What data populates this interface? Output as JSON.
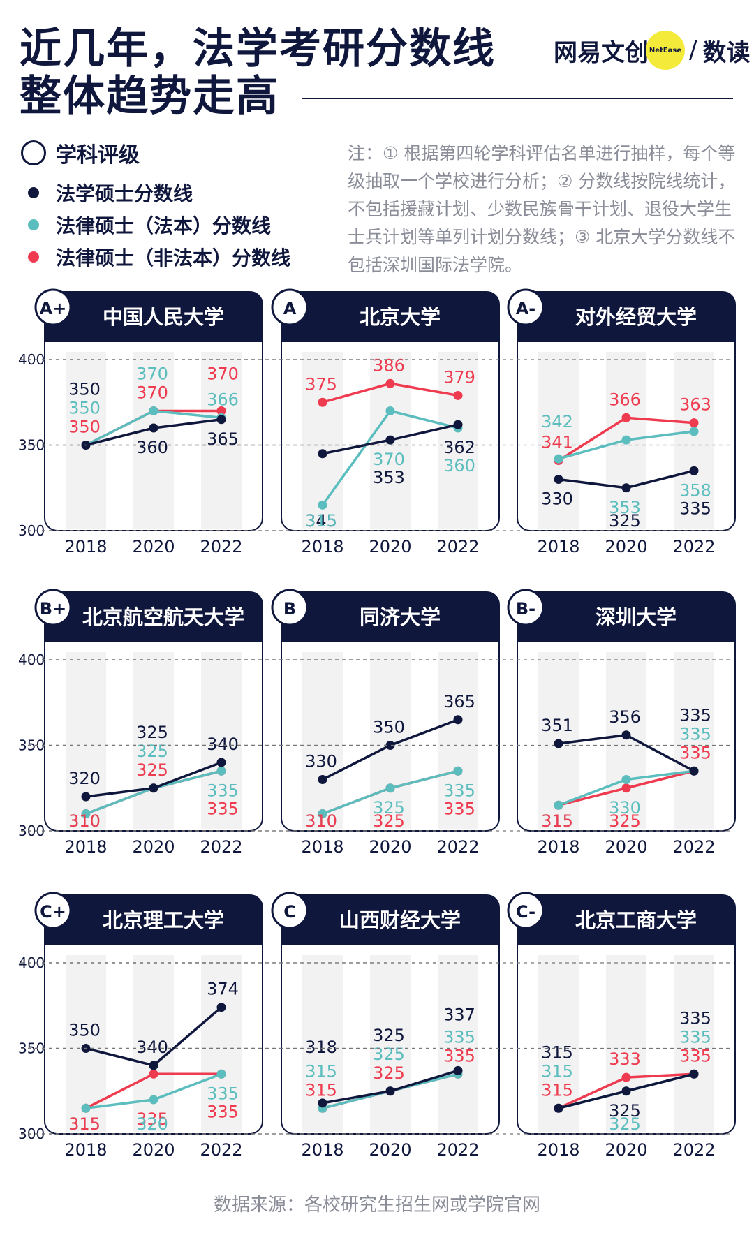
{
  "header": {
    "title_line1": "近几年，法学考研分数线",
    "title_line2": "整体趋势走高",
    "brand_left": "网易文创",
    "brand_circle": "NetEase",
    "brand_slash": "/",
    "brand_right": "数读"
  },
  "legend": {
    "heading": "学科评级",
    "items": [
      {
        "label": "法学硕士分数线",
        "color": "#10173d"
      },
      {
        "label": "法律硕士（法本）分数线",
        "color": "#5bbdbd"
      },
      {
        "label": "法律硕士（非法本）分数线",
        "color": "#ee3b4f"
      }
    ]
  },
  "note": "注：① 根据第四轮学科评估名单进行抽样，每个等级抽取一个学校进行分析；② 分数线按院线统计，不包括援藏计划、少数民族骨干计划、退役大学生士兵计划等单列计划分数线；③ 北京大学分数线不包括深圳国际法学院。",
  "source": "数据来源：各校研究生招生网或学院官网",
  "colors": {
    "navy": "#10173d",
    "teal": "#5bbdbd",
    "red": "#ee3b4f"
  },
  "chart_data": [
    {
      "type": "line",
      "grade": "A+",
      "title": "中国人民大学",
      "x": [
        "2018",
        "2020",
        "2022"
      ],
      "ylim": [
        300,
        400
      ],
      "yticks": [
        300,
        350,
        400
      ],
      "series": [
        {
          "name": "法学硕士分数线",
          "values": [
            350,
            360,
            365
          ]
        },
        {
          "name": "法律硕士（法本）分数线",
          "values": [
            350,
            370,
            366
          ]
        },
        {
          "name": "法律硕士（非法本）分数线",
          "values": [
            350,
            370,
            370
          ]
        }
      ]
    },
    {
      "type": "line",
      "grade": "A",
      "title": "北京大学",
      "x": [
        "2018",
        "2020",
        "2022"
      ],
      "ylim": [
        300,
        400
      ],
      "yticks": [
        300,
        350,
        400
      ],
      "series": [
        {
          "name": "法学硕士分数线",
          "values": [
            345,
            353,
            362
          ]
        },
        {
          "name": "法律硕士（法本）分数线",
          "values": [
            315,
            370,
            360
          ]
        },
        {
          "name": "法律硕士（非法本）分数线",
          "values": [
            375,
            386,
            379
          ]
        }
      ]
    },
    {
      "type": "line",
      "grade": "A-",
      "title": "对外经贸大学",
      "x": [
        "2018",
        "2020",
        "2022"
      ],
      "ylim": [
        300,
        400
      ],
      "yticks": [
        300,
        350,
        400
      ],
      "series": [
        {
          "name": "法学硕士分数线",
          "values": [
            330,
            325,
            335
          ]
        },
        {
          "name": "法律硕士（法本）分数线",
          "values": [
            342,
            353,
            358
          ]
        },
        {
          "name": "法律硕士（非法本）分数线",
          "values": [
            341,
            366,
            363
          ]
        }
      ]
    },
    {
      "type": "line",
      "grade": "B+",
      "title": "北京航空航天大学",
      "x": [
        "2018",
        "2020",
        "2022"
      ],
      "ylim": [
        300,
        400
      ],
      "yticks": [
        300,
        350,
        400
      ],
      "series": [
        {
          "name": "法学硕士分数线",
          "values": [
            320,
            325,
            340
          ]
        },
        {
          "name": "法律硕士（法本）分数线",
          "values": [
            310,
            325,
            335
          ]
        },
        {
          "name": "法律硕士（非法本）分数线",
          "values": [
            310,
            325,
            335
          ]
        }
      ]
    },
    {
      "type": "line",
      "grade": "B",
      "title": "同济大学",
      "x": [
        "2018",
        "2020",
        "2022"
      ],
      "ylim": [
        300,
        400
      ],
      "yticks": [
        300,
        350,
        400
      ],
      "series": [
        {
          "name": "法学硕士分数线",
          "values": [
            330,
            350,
            365
          ]
        },
        {
          "name": "法律硕士（法本）分数线",
          "values": [
            310,
            325,
            335
          ]
        },
        {
          "name": "法律硕士（非法本）分数线",
          "values": [
            310,
            325,
            335
          ]
        }
      ]
    },
    {
      "type": "line",
      "grade": "B-",
      "title": "深圳大学",
      "x": [
        "2018",
        "2020",
        "2022"
      ],
      "ylim": [
        300,
        400
      ],
      "yticks": [
        300,
        350,
        400
      ],
      "series": [
        {
          "name": "法学硕士分数线",
          "values": [
            351,
            356,
            335
          ]
        },
        {
          "name": "法律硕士（法本）分数线",
          "values": [
            315,
            330,
            335
          ]
        },
        {
          "name": "法律硕士（非法本）分数线",
          "values": [
            315,
            325,
            335
          ]
        }
      ]
    },
    {
      "type": "line",
      "grade": "C+",
      "title": "北京理工大学",
      "x": [
        "2018",
        "2020",
        "2022"
      ],
      "ylim": [
        300,
        400
      ],
      "yticks": [
        300,
        350,
        400
      ],
      "series": [
        {
          "name": "法学硕士分数线",
          "values": [
            350,
            340,
            374
          ]
        },
        {
          "name": "法律硕士（法本）分数线",
          "values": [
            315,
            320,
            335
          ]
        },
        {
          "name": "法律硕士（非法本）分数线",
          "values": [
            315,
            335,
            335
          ]
        }
      ]
    },
    {
      "type": "line",
      "grade": "C",
      "title": "山西财经大学",
      "x": [
        "2018",
        "2020",
        "2022"
      ],
      "ylim": [
        300,
        400
      ],
      "yticks": [
        300,
        350,
        400
      ],
      "series": [
        {
          "name": "法学硕士分数线",
          "values": [
            318,
            325,
            337
          ]
        },
        {
          "name": "法律硕士（法本）分数线",
          "values": [
            315,
            325,
            335
          ]
        },
        {
          "name": "法律硕士（非法本）分数线",
          "values": [
            315,
            325,
            335
          ]
        }
      ]
    },
    {
      "type": "line",
      "grade": "C-",
      "title": "北京工商大学",
      "x": [
        "2018",
        "2020",
        "2022"
      ],
      "ylim": [
        300,
        400
      ],
      "yticks": [
        300,
        350,
        400
      ],
      "series": [
        {
          "name": "法学硕士分数线",
          "values": [
            315,
            325,
            335
          ]
        },
        {
          "name": "法律硕士（法本）分数线",
          "values": [
            315,
            325,
            335
          ]
        },
        {
          "name": "法律硕士（非法本）分数线",
          "values": [
            315,
            333,
            335
          ]
        }
      ]
    }
  ]
}
